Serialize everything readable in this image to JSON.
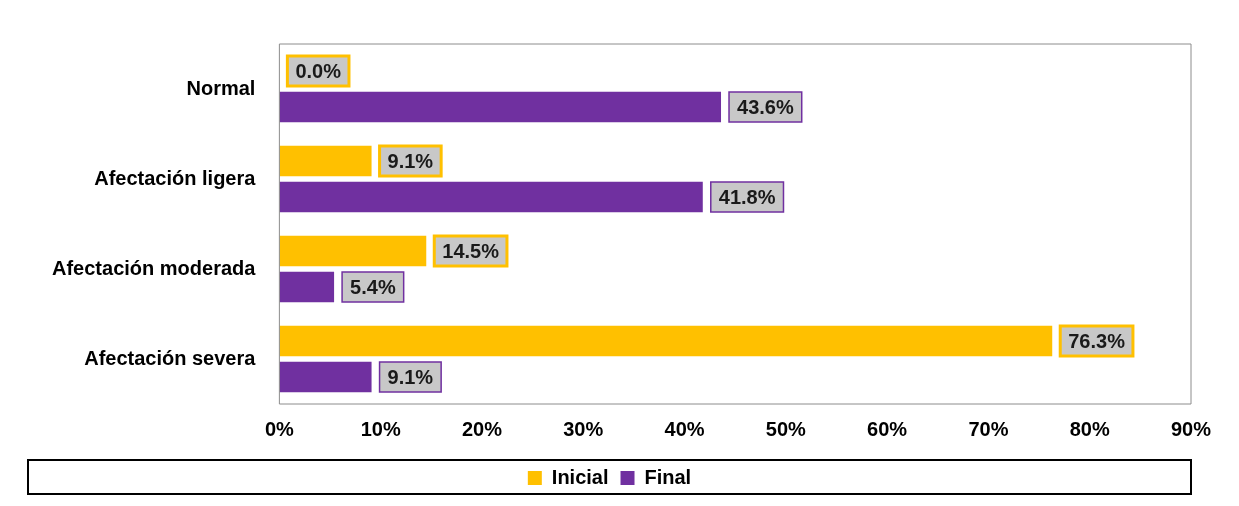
{
  "chart_data": {
    "type": "bar",
    "orientation": "horizontal",
    "categories": [
      "Normal",
      "Afectación ligera",
      "Afectación moderada",
      "Afectación severa"
    ],
    "series": [
      {
        "name": "Inicial",
        "color": "#ffc000",
        "values": [
          0.0,
          9.1,
          14.5,
          76.3
        ],
        "value_labels": [
          "0.0%",
          "9.1%",
          "14.5%",
          "76.3%"
        ]
      },
      {
        "name": "Final",
        "color": "#7030a0",
        "values": [
          43.6,
          41.8,
          5.4,
          9.1
        ],
        "value_labels": [
          "43.6%",
          "41.8%",
          "5.4%",
          "9.1%"
        ]
      }
    ],
    "xlim": [
      0,
      90
    ],
    "xticks": [
      {
        "value": 0,
        "label": "0%"
      },
      {
        "value": 10,
        "label": "10%"
      },
      {
        "value": 20,
        "label": "20%"
      },
      {
        "value": 30,
        "label": "30%"
      },
      {
        "value": 40,
        "label": "40%"
      },
      {
        "value": 50,
        "label": "50%"
      },
      {
        "value": 60,
        "label": "60%"
      },
      {
        "value": 70,
        "label": "70%"
      },
      {
        "value": 80,
        "label": "80%"
      },
      {
        "value": 90,
        "label": "90%"
      }
    ],
    "grid": false,
    "legend": "bottom"
  }
}
